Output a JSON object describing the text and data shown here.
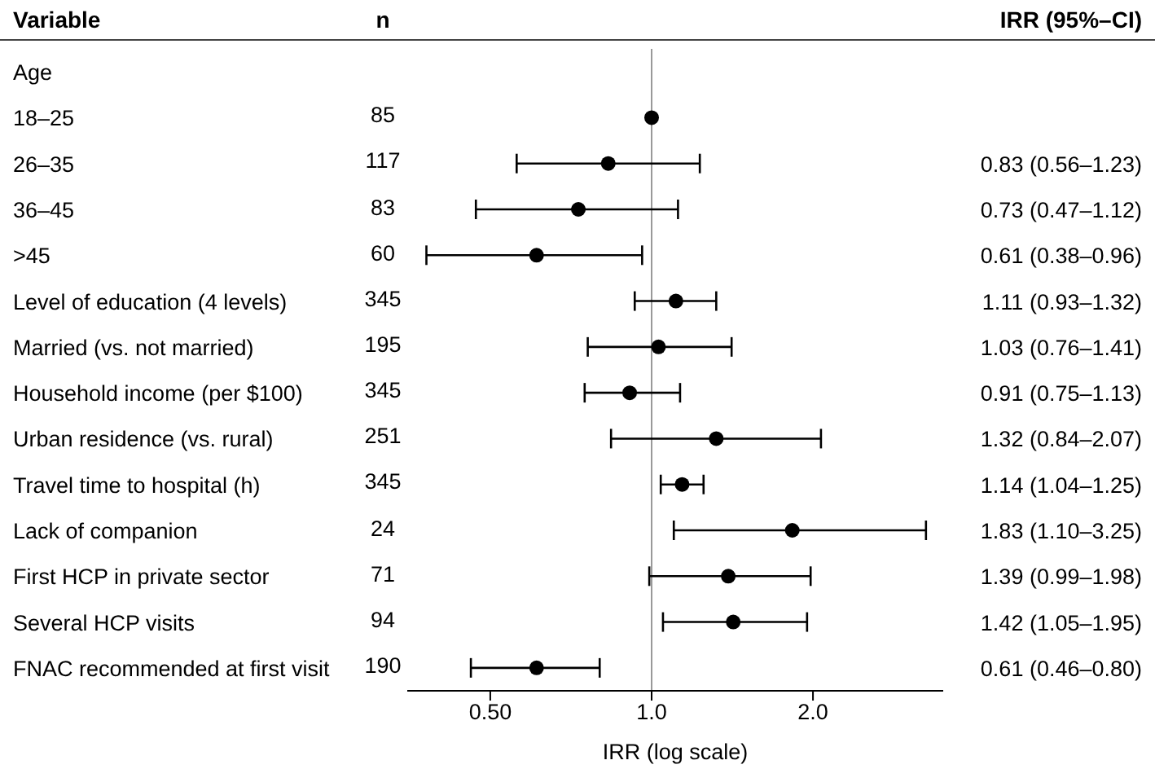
{
  "chart_data": {
    "type": "scatter",
    "orientation": "horizontal",
    "xlabel": "IRR (log scale)",
    "ylabel": "Variable",
    "categories": [
      "Age",
      "18–25",
      "26–35",
      "36–45",
      ">45",
      "Level of education (4 levels)",
      "Married (vs. not married)",
      "Household income (per $100)",
      "Urban residence (vs. rural)",
      "Travel time to hospital (h)",
      "Lack of companion",
      "First HCP in private sector",
      "Several HCP visits",
      "FNAC recommended at first visit"
    ],
    "values": [
      null,
      1,
      0.83,
      0.73,
      0.61,
      1.11,
      1.03,
      0.91,
      1.32,
      1.14,
      1.83,
      1.39,
      1.42,
      0.61
    ],
    "errors": [
      null,
      null,
      [
        0.56,
        1.23
      ],
      [
        0.47,
        1.12
      ],
      [
        0.38,
        0.96
      ],
      [
        0.93,
        1.32
      ],
      [
        0.76,
        1.41
      ],
      [
        0.75,
        1.13
      ],
      [
        0.84,
        2.07
      ],
      [
        1.04,
        1.25
      ],
      [
        1.1,
        3.25
      ],
      [
        0.99,
        1.98
      ],
      [
        1.05,
        1.95
      ],
      [
        0.46,
        0.8
      ]
    ],
    "value_labels": [
      null,
      null,
      "0.83 (0.56–1.23)",
      "0.73 (0.47–1.12)",
      "0.61 (0.38–0.96)",
      "1.11 (0.93–1.32)",
      "1.03 (0.76–1.41)",
      "0.91 (0.75–1.13)",
      "1.32 (0.84–2.07)",
      "1.14 (1.04–1.25)",
      "1.83 (1.10–3.25)",
      "1.39 (0.99–1.98)",
      "1.42 (1.05–1.95)",
      "0.61 (0.46–0.80)"
    ],
    "color": "#000000",
    "marker": "circle",
    "log": "x",
    "legend": false,
    "grid": false,
    "xlim": [
      0.35,
      3.5
    ],
    "xticks": [
      {
        "value": 0.5,
        "label": "0.50"
      },
      {
        "value": 1,
        "label": "1.0"
      },
      {
        "value": 2,
        "label": "2.0"
      }
    ],
    "ref_lines": [
      {
        "axis": "x",
        "value": 1,
        "color": "#999999"
      }
    ],
    "annotations": [
      "n",
      "IRR (95%–CI)",
      "85",
      "117",
      "83",
      "60",
      "345",
      "195",
      "345",
      "251",
      "345",
      "24",
      "71",
      "94",
      "190"
    ]
  }
}
